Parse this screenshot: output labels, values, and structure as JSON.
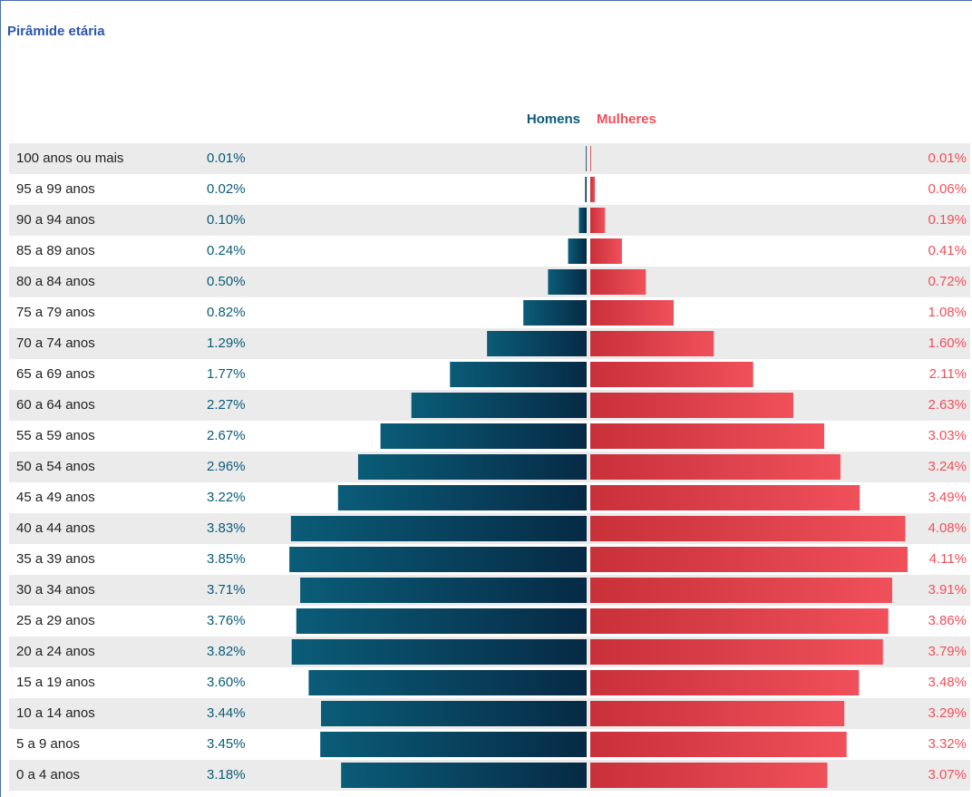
{
  "chart_data": {
    "type": "pyramid",
    "title": "Pirâmide etária",
    "categories": [
      "100 anos ou mais",
      "95 a 99 anos",
      "90 a 94 anos",
      "85 a 89 anos",
      "80 a 84 anos",
      "75 a 79 anos",
      "70 a 74 anos",
      "65 a 69 anos",
      "60 a 64 anos",
      "55 a 59 anos",
      "50 a 54 anos",
      "45 a 49 anos",
      "40 a 44 anos",
      "35 a 39 anos",
      "30 a 34 anos",
      "25 a 29 anos",
      "20 a 24 anos",
      "15 a 19 anos",
      "10 a 14 anos",
      "5 a 9 anos",
      "0 a 4 anos"
    ],
    "series": [
      {
        "name": "Homens",
        "color": "#0a5c78",
        "values": [
          0.01,
          0.02,
          0.1,
          0.24,
          0.5,
          0.82,
          1.29,
          1.77,
          2.27,
          2.67,
          2.96,
          3.22,
          3.83,
          3.85,
          3.71,
          3.76,
          3.82,
          3.6,
          3.44,
          3.45,
          3.18
        ],
        "value_labels": [
          "0.01%",
          "0.02%",
          "0.10%",
          "0.24%",
          "0.50%",
          "0.82%",
          "1.29%",
          "1.77%",
          "2.27%",
          "2.67%",
          "2.96%",
          "3.22%",
          "3.83%",
          "3.85%",
          "3.71%",
          "3.76%",
          "3.82%",
          "3.60%",
          "3.44%",
          "3.45%",
          "3.18%"
        ]
      },
      {
        "name": "Mulheres",
        "color": "#f0505a",
        "values": [
          0.01,
          0.06,
          0.19,
          0.41,
          0.72,
          1.08,
          1.6,
          2.11,
          2.63,
          3.03,
          3.24,
          3.49,
          4.08,
          4.11,
          3.91,
          3.86,
          3.79,
          3.48,
          3.29,
          3.32,
          3.07
        ],
        "value_labels": [
          "0.01%",
          "0.06%",
          "0.19%",
          "0.41%",
          "0.72%",
          "1.08%",
          "1.60%",
          "2.11%",
          "2.63%",
          "3.03%",
          "3.24%",
          "3.49%",
          "4.08%",
          "4.11%",
          "3.91%",
          "3.86%",
          "3.79%",
          "3.48%",
          "3.29%",
          "3.32%",
          "3.07%"
        ]
      }
    ]
  }
}
